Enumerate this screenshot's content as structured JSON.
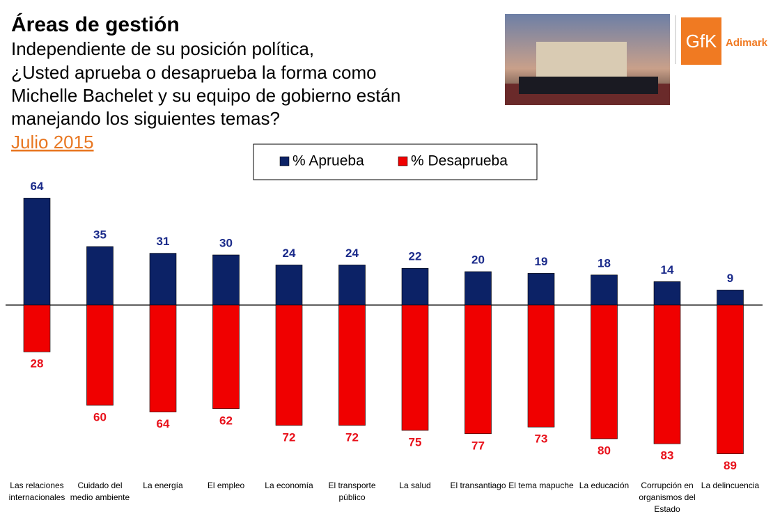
{
  "chart_data": {
    "type": "diverging-bar",
    "title": "Áreas de gestión",
    "subtitle": [
      "Independiente de su posición política,",
      "¿Usted aprueba o desaprueba la forma como",
      "Michelle Bachelet y su equipo de gobierno están",
      "manejando los siguientes temas?"
    ],
    "date": "Julio 2015",
    "logo": {
      "mark": "GfK",
      "name": "Adimark"
    },
    "categories": [
      "Las relaciones internacionales",
      "Cuidado del medio ambiente",
      "La energía",
      "El empleo",
      "La economía",
      "El transporte público",
      "La salud",
      "El transantiago",
      "El tema mapuche",
      "La educación",
      "Corrupción en organismos del Estado",
      "La delincuencia"
    ],
    "series": [
      {
        "name": "% Aprueba",
        "color": "#0c2266",
        "label_color": "#1a2a8a",
        "values": [
          64,
          35,
          31,
          30,
          24,
          24,
          22,
          20,
          19,
          18,
          14,
          9
        ]
      },
      {
        "name": "% Desaprueba",
        "color": "#f00000",
        "label_color": "#e8101a",
        "values": [
          28,
          60,
          64,
          62,
          72,
          72,
          75,
          77,
          73,
          80,
          83,
          89
        ]
      }
    ]
  }
}
